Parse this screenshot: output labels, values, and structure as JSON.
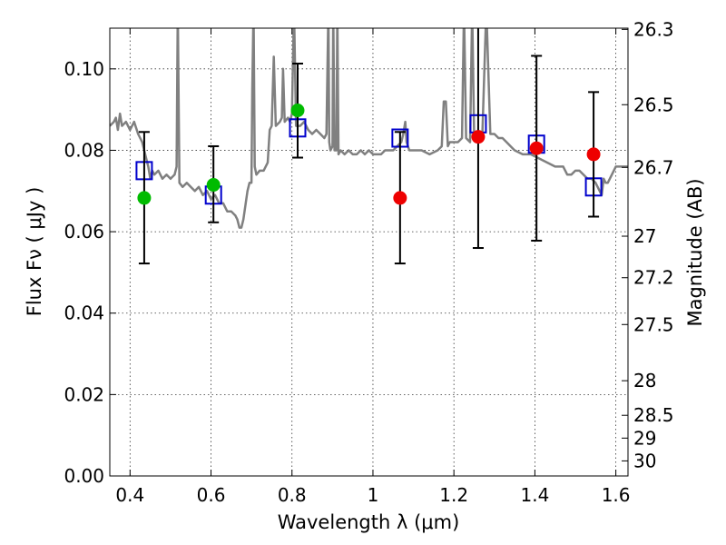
{
  "chart_data": {
    "type": "scatter",
    "xlabel": "Wavelength  λ (μm)",
    "ylabel": "Flux  Fν  ( μJy )",
    "right_ylabel": "Magnitude (AB)",
    "xlim": [
      0.35,
      1.63
    ],
    "ylim": [
      0.0,
      0.11
    ],
    "grid": true,
    "x_ticks": [
      {
        "value": 0.4,
        "label": "0.4"
      },
      {
        "value": 0.6,
        "label": "0.6"
      },
      {
        "value": 0.8,
        "label": "0.8"
      },
      {
        "value": 1.0,
        "label": "1"
      },
      {
        "value": 1.2,
        "label": "1.2"
      },
      {
        "value": 1.4,
        "label": "1.4"
      },
      {
        "value": 1.6,
        "label": "1.6"
      }
    ],
    "y_ticks": [
      {
        "value": 0.0,
        "label": "0.00"
      },
      {
        "value": 0.02,
        "label": "0.02"
      },
      {
        "value": 0.04,
        "label": "0.04"
      },
      {
        "value": 0.06,
        "label": "0.06"
      },
      {
        "value": 0.08,
        "label": "0.08"
      },
      {
        "value": 0.1,
        "label": "0.10"
      }
    ],
    "right_ticks": [
      {
        "flux": 0.1097,
        "label": "26.3"
      },
      {
        "flux": 0.0912,
        "label": "26.5"
      },
      {
        "flux": 0.0758,
        "label": "26.7"
      },
      {
        "flux": 0.0589,
        "label": "27"
      },
      {
        "flux": 0.0487,
        "label": "27.2"
      },
      {
        "flux": 0.0372,
        "label": "27.5"
      },
      {
        "flux": 0.0234,
        "label": "28"
      },
      {
        "flux": 0.0149,
        "label": "28.5"
      },
      {
        "flux": 0.0093,
        "label": "29"
      },
      {
        "flux": 0.0037,
        "label": "30"
      }
    ],
    "colors": {
      "model_sed": "#808080",
      "model_box": "#0000cc",
      "optical_points": "#00bb00",
      "nir_points": "#ee0000",
      "errorbars": "#000000"
    },
    "model_sed": [
      [
        0.35,
        0.086
      ],
      [
        0.36,
        0.087
      ],
      [
        0.365,
        0.088
      ],
      [
        0.37,
        0.085
      ],
      [
        0.375,
        0.089
      ],
      [
        0.38,
        0.086
      ],
      [
        0.39,
        0.087
      ],
      [
        0.4,
        0.085
      ],
      [
        0.41,
        0.087
      ],
      [
        0.42,
        0.084
      ],
      [
        0.43,
        0.082
      ],
      [
        0.44,
        0.078
      ],
      [
        0.445,
        0.076
      ],
      [
        0.45,
        0.073
      ],
      [
        0.455,
        0.075
      ],
      [
        0.46,
        0.074
      ],
      [
        0.47,
        0.075
      ],
      [
        0.48,
        0.073
      ],
      [
        0.49,
        0.074
      ],
      [
        0.5,
        0.073
      ],
      [
        0.51,
        0.074
      ],
      [
        0.515,
        0.076
      ],
      [
        0.518,
        0.115
      ],
      [
        0.522,
        0.072
      ],
      [
        0.53,
        0.071
      ],
      [
        0.54,
        0.072
      ],
      [
        0.55,
        0.071
      ],
      [
        0.56,
        0.07
      ],
      [
        0.57,
        0.071
      ],
      [
        0.58,
        0.069
      ],
      [
        0.59,
        0.07
      ],
      [
        0.6,
        0.068
      ],
      [
        0.61,
        0.069
      ],
      [
        0.62,
        0.067
      ],
      [
        0.63,
        0.067
      ],
      [
        0.64,
        0.065
      ],
      [
        0.65,
        0.065
      ],
      [
        0.66,
        0.064
      ],
      [
        0.665,
        0.063
      ],
      [
        0.67,
        0.061
      ],
      [
        0.675,
        0.061
      ],
      [
        0.68,
        0.063
      ],
      [
        0.69,
        0.07
      ],
      [
        0.695,
        0.072
      ],
      [
        0.7,
        0.072
      ],
      [
        0.702,
        0.095
      ],
      [
        0.705,
        0.115
      ],
      [
        0.708,
        0.076
      ],
      [
        0.712,
        0.074
      ],
      [
        0.72,
        0.075
      ],
      [
        0.73,
        0.075
      ],
      [
        0.74,
        0.077
      ],
      [
        0.745,
        0.085
      ],
      [
        0.75,
        0.086
      ],
      [
        0.755,
        0.103
      ],
      [
        0.76,
        0.086
      ],
      [
        0.77,
        0.087
      ],
      [
        0.775,
        0.088
      ],
      [
        0.778,
        0.1
      ],
      [
        0.782,
        0.087
      ],
      [
        0.79,
        0.088
      ],
      [
        0.795,
        0.087
      ],
      [
        0.8,
        0.089
      ],
      [
        0.805,
        0.115
      ],
      [
        0.81,
        0.086
      ],
      [
        0.82,
        0.086
      ],
      [
        0.83,
        0.087
      ],
      [
        0.84,
        0.085
      ],
      [
        0.85,
        0.084
      ],
      [
        0.86,
        0.085
      ],
      [
        0.87,
        0.084
      ],
      [
        0.88,
        0.083
      ],
      [
        0.885,
        0.084
      ],
      [
        0.89,
        0.115
      ],
      [
        0.892,
        0.082
      ],
      [
        0.895,
        0.08
      ],
      [
        0.9,
        0.081
      ],
      [
        0.902,
        0.115
      ],
      [
        0.905,
        0.08
      ],
      [
        0.91,
        0.08
      ],
      [
        0.912,
        0.115
      ],
      [
        0.915,
        0.079
      ],
      [
        0.92,
        0.08
      ],
      [
        0.93,
        0.079
      ],
      [
        0.94,
        0.08
      ],
      [
        0.95,
        0.079
      ],
      [
        0.96,
        0.079
      ],
      [
        0.97,
        0.08
      ],
      [
        0.98,
        0.079
      ],
      [
        0.99,
        0.08
      ],
      [
        1.0,
        0.079
      ],
      [
        1.01,
        0.079
      ],
      [
        1.02,
        0.079
      ],
      [
        1.03,
        0.08
      ],
      [
        1.04,
        0.08
      ],
      [
        1.05,
        0.08
      ],
      [
        1.06,
        0.081
      ],
      [
        1.07,
        0.082
      ],
      [
        1.075,
        0.084
      ],
      [
        1.08,
        0.087
      ],
      [
        1.083,
        0.082
      ],
      [
        1.09,
        0.08
      ],
      [
        1.1,
        0.08
      ],
      [
        1.12,
        0.08
      ],
      [
        1.14,
        0.079
      ],
      [
        1.16,
        0.08
      ],
      [
        1.17,
        0.081
      ],
      [
        1.175,
        0.092
      ],
      [
        1.18,
        0.092
      ],
      [
        1.185,
        0.081
      ],
      [
        1.19,
        0.082
      ],
      [
        1.2,
        0.082
      ],
      [
        1.21,
        0.082
      ],
      [
        1.22,
        0.083
      ],
      [
        1.225,
        0.115
      ],
      [
        1.23,
        0.083
      ],
      [
        1.24,
        0.082
      ],
      [
        1.245,
        0.115
      ],
      [
        1.25,
        0.083
      ],
      [
        1.26,
        0.082
      ],
      [
        1.27,
        0.083
      ],
      [
        1.28,
        0.115
      ],
      [
        1.29,
        0.084
      ],
      [
        1.3,
        0.084
      ],
      [
        1.31,
        0.083
      ],
      [
        1.32,
        0.083
      ],
      [
        1.33,
        0.082
      ],
      [
        1.34,
        0.081
      ],
      [
        1.35,
        0.08
      ],
      [
        1.37,
        0.079
      ],
      [
        1.39,
        0.079
      ],
      [
        1.41,
        0.078
      ],
      [
        1.43,
        0.077
      ],
      [
        1.45,
        0.076
      ],
      [
        1.47,
        0.076
      ],
      [
        1.48,
        0.074
      ],
      [
        1.49,
        0.074
      ],
      [
        1.5,
        0.075
      ],
      [
        1.51,
        0.075
      ],
      [
        1.52,
        0.074
      ],
      [
        1.53,
        0.073
      ],
      [
        1.54,
        0.073
      ],
      [
        1.55,
        0.072
      ],
      [
        1.56,
        0.07
      ],
      [
        1.565,
        0.069
      ],
      [
        1.57,
        0.073
      ],
      [
        1.575,
        0.072
      ],
      [
        1.58,
        0.072
      ],
      [
        1.59,
        0.074
      ],
      [
        1.6,
        0.076
      ],
      [
        1.61,
        0.076
      ],
      [
        1.62,
        0.076
      ],
      [
        1.63,
        0.076
      ]
    ],
    "model_fluxes": [
      {
        "x": 0.435,
        "y": 0.075
      },
      {
        "x": 0.606,
        "y": 0.069
      },
      {
        "x": 0.814,
        "y": 0.0855
      },
      {
        "x": 1.067,
        "y": 0.083
      },
      {
        "x": 1.26,
        "y": 0.0865
      },
      {
        "x": 1.404,
        "y": 0.0815
      },
      {
        "x": 1.545,
        "y": 0.071
      }
    ],
    "observed": [
      {
        "x": 0.435,
        "y": 0.0683,
        "err_low": 0.0522,
        "err_high": 0.0845,
        "group": "optical"
      },
      {
        "x": 0.606,
        "y": 0.0715,
        "err_low": 0.0623,
        "err_high": 0.081,
        "group": "optical"
      },
      {
        "x": 0.814,
        "y": 0.0898,
        "err_low": 0.0782,
        "err_high": 0.1013,
        "group": "optical"
      },
      {
        "x": 1.067,
        "y": 0.0683,
        "err_low": 0.0522,
        "err_high": 0.0845,
        "group": "nir"
      },
      {
        "x": 1.26,
        "y": 0.0833,
        "err_low": 0.056,
        "err_high": 0.112,
        "group": "nir"
      },
      {
        "x": 1.404,
        "y": 0.0805,
        "err_low": 0.0578,
        "err_high": 0.1032,
        "group": "nir"
      },
      {
        "x": 1.545,
        "y": 0.079,
        "err_low": 0.0637,
        "err_high": 0.0943,
        "group": "nir"
      }
    ]
  }
}
